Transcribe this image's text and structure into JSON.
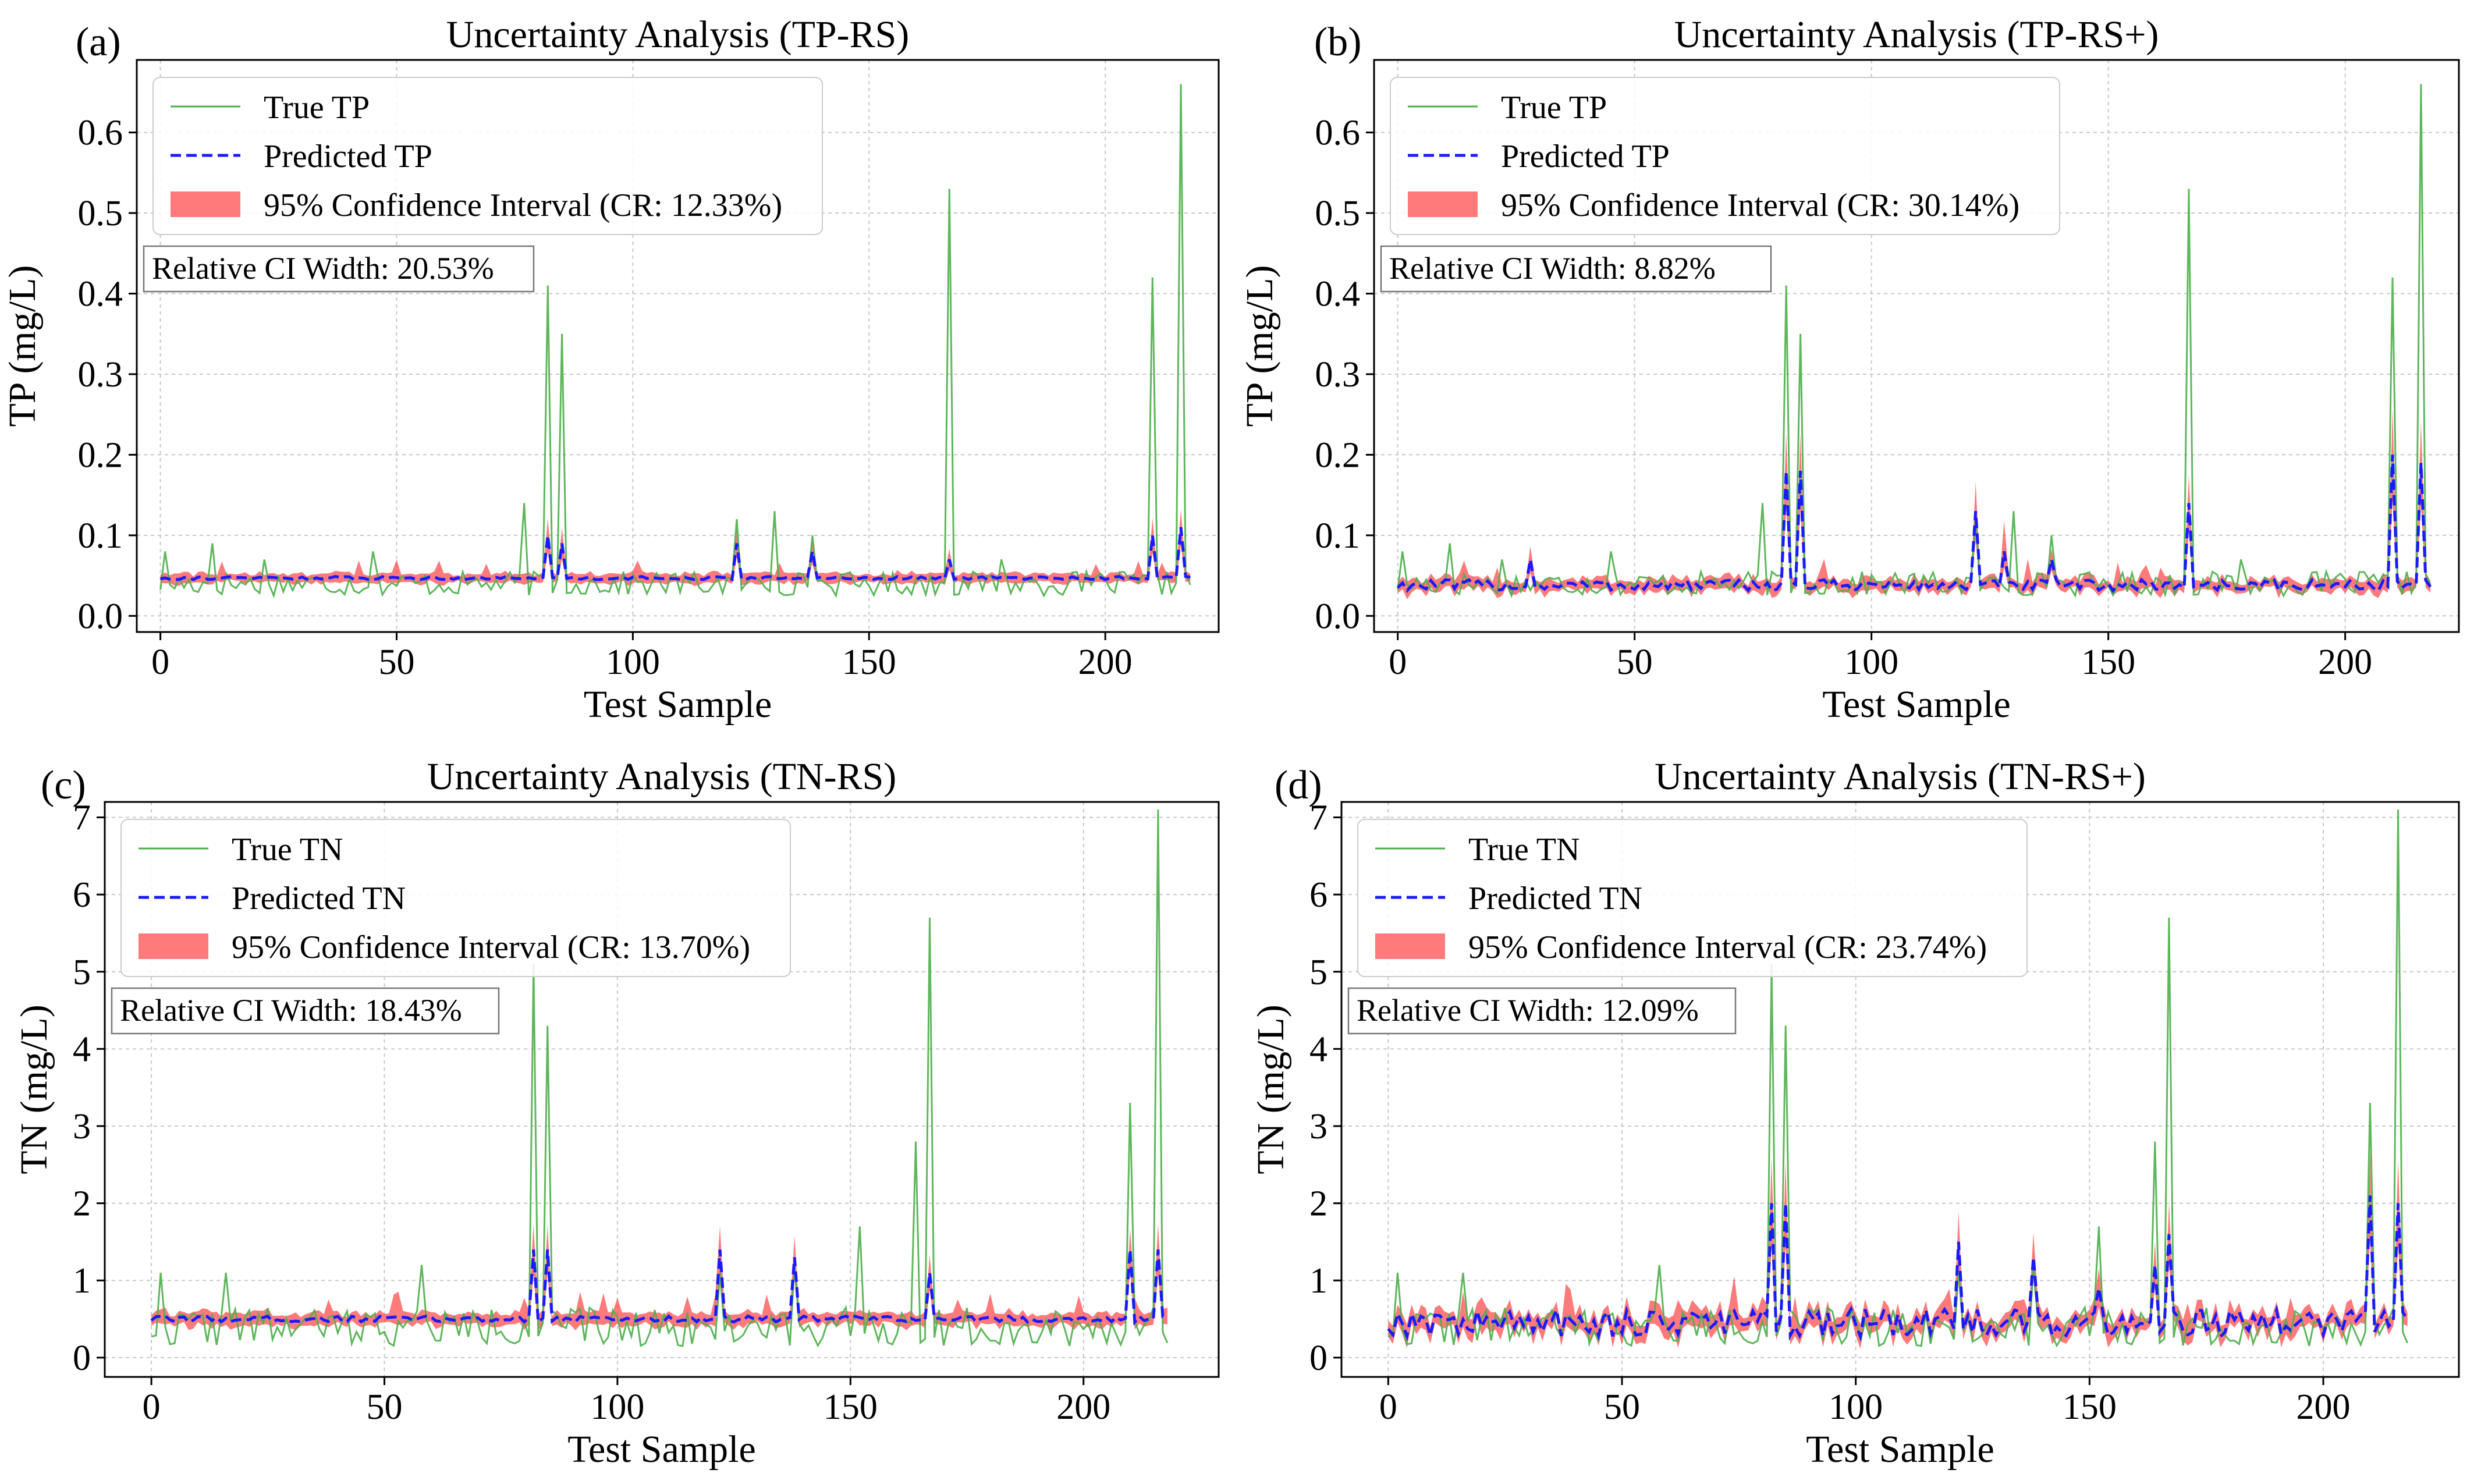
{
  "colors": {
    "true_line": "#4daf4a",
    "predicted_line": "#1a1aff",
    "ci_fill": "#ff3333",
    "grid": "#c8c8c8"
  },
  "chart_data": [
    {
      "type": "line",
      "panel_label": "(a)",
      "title": "Uncertainty Analysis (TP-RS)",
      "xlabel": "Test Sample",
      "ylabel": "TP (mg/L)",
      "xlim": [
        -5,
        224
      ],
      "ylim": [
        -0.02,
        0.69
      ],
      "xticks": [
        0,
        50,
        100,
        150,
        200
      ],
      "yticks": [
        0.0,
        0.1,
        0.2,
        0.3,
        0.4,
        0.5,
        0.6
      ],
      "ytick_labels": [
        "0.0",
        "0.1",
        "0.2",
        "0.3",
        "0.4",
        "0.5",
        "0.6"
      ],
      "legend": [
        "True TP",
        "Predicted TP",
        "95% Confidence Interval (CR: 12.33%)"
      ],
      "annotation": "Relative CI Width: 20.53%",
      "n_samples": 219,
      "true_series": {
        "base": 0.04,
        "noise": 0.015,
        "spikes": [
          [
            1,
            0.08
          ],
          [
            11,
            0.09
          ],
          [
            22,
            0.07
          ],
          [
            45,
            0.08
          ],
          [
            77,
            0.14
          ],
          [
            82,
            0.41
          ],
          [
            85,
            0.35
          ],
          [
            122,
            0.12
          ],
          [
            130,
            0.13
          ],
          [
            138,
            0.1
          ],
          [
            167,
            0.53
          ],
          [
            178,
            0.07
          ],
          [
            210,
            0.42
          ],
          [
            216,
            0.66
          ]
        ]
      },
      "predicted_series": {
        "base": 0.047,
        "noise": 0.002,
        "spikes": [
          [
            82,
            0.1
          ],
          [
            85,
            0.09
          ],
          [
            122,
            0.09
          ],
          [
            138,
            0.08
          ],
          [
            167,
            0.07
          ],
          [
            210,
            0.1
          ],
          [
            216,
            0.11
          ]
        ]
      },
      "ci_half_width": {
        "base": 0.005,
        "spike_extra": 0.3
      }
    },
    {
      "type": "line",
      "panel_label": "(b)",
      "title": "Uncertainty Analysis (TP-RS+)",
      "xlabel": "Test Sample",
      "ylabel": "TP (mg/L)",
      "xlim": [
        -5,
        224
      ],
      "ylim": [
        -0.02,
        0.69
      ],
      "xticks": [
        0,
        50,
        100,
        150,
        200
      ],
      "yticks": [
        0.0,
        0.1,
        0.2,
        0.3,
        0.4,
        0.5,
        0.6
      ],
      "ytick_labels": [
        "0.0",
        "0.1",
        "0.2",
        "0.3",
        "0.4",
        "0.5",
        "0.6"
      ],
      "legend": [
        "True TP",
        "Predicted TP",
        "95% Confidence Interval (CR: 30.14%)"
      ],
      "annotation": "Relative CI Width: 8.82%",
      "n_samples": 219,
      "true_series": {
        "base": 0.04,
        "noise": 0.015,
        "spikes": [
          [
            1,
            0.08
          ],
          [
            11,
            0.09
          ],
          [
            22,
            0.07
          ],
          [
            45,
            0.08
          ],
          [
            77,
            0.14
          ],
          [
            82,
            0.41
          ],
          [
            85,
            0.35
          ],
          [
            122,
            0.12
          ],
          [
            130,
            0.13
          ],
          [
            138,
            0.1
          ],
          [
            167,
            0.53
          ],
          [
            178,
            0.07
          ],
          [
            210,
            0.42
          ],
          [
            216,
            0.66
          ]
        ]
      },
      "predicted_series": {
        "base": 0.038,
        "noise": 0.007,
        "spikes": [
          [
            28,
            0.07
          ],
          [
            82,
            0.18
          ],
          [
            85,
            0.18
          ],
          [
            122,
            0.13
          ],
          [
            128,
            0.08
          ],
          [
            138,
            0.07
          ],
          [
            167,
            0.14
          ],
          [
            210,
            0.2
          ],
          [
            216,
            0.19
          ]
        ]
      },
      "ci_half_width": {
        "base": 0.006,
        "spike_extra": 0.3
      }
    },
    {
      "type": "line",
      "panel_label": "(c)",
      "title": "Uncertainty Analysis (TN-RS)",
      "xlabel": "Test Sample",
      "ylabel": "TN (mg/L)",
      "xlim": [
        -10,
        229
      ],
      "ylim": [
        -0.25,
        7.2
      ],
      "xticks": [
        0,
        50,
        100,
        150,
        200
      ],
      "yticks": [
        0,
        1,
        2,
        3,
        4,
        5,
        6,
        7
      ],
      "ytick_labels": [
        "0",
        "1",
        "2",
        "3",
        "4",
        "5",
        "6",
        "7"
      ],
      "legend": [
        "True TN",
        "Predicted TN",
        "95% Confidence Interval (CR: 13.70%)"
      ],
      "annotation": "Relative CI Width: 18.43%",
      "n_samples": 219,
      "true_series": {
        "base": 0.4,
        "noise": 0.25,
        "spikes": [
          [
            2,
            1.1
          ],
          [
            16,
            1.1
          ],
          [
            58,
            1.2
          ],
          [
            82,
            5.1
          ],
          [
            85,
            4.3
          ],
          [
            122,
            1.1
          ],
          [
            138,
            1.2
          ],
          [
            152,
            1.7
          ],
          [
            164,
            2.8
          ],
          [
            167,
            5.7
          ],
          [
            210,
            3.3
          ],
          [
            216,
            7.1
          ]
        ]
      },
      "predicted_series": {
        "base": 0.5,
        "noise": 0.04,
        "spikes": [
          [
            82,
            1.4
          ],
          [
            85,
            1.4
          ],
          [
            122,
            1.4
          ],
          [
            138,
            1.3
          ],
          [
            167,
            1.1
          ],
          [
            210,
            1.4
          ],
          [
            216,
            1.4
          ]
        ]
      },
      "ci_half_width": {
        "base": 0.07,
        "spike_extra": 0.25
      }
    },
    {
      "type": "line",
      "panel_label": "(d)",
      "title": "Uncertainty Analysis (TN-RS+)",
      "xlabel": "Test Sample",
      "ylabel": "TN (mg/L)",
      "xlim": [
        -10,
        229
      ],
      "ylim": [
        -0.25,
        7.2
      ],
      "xticks": [
        0,
        50,
        100,
        150,
        200
      ],
      "yticks": [
        0,
        1,
        2,
        3,
        4,
        5,
        6,
        7
      ],
      "ytick_labels": [
        "0",
        "1",
        "2",
        "3",
        "4",
        "5",
        "6",
        "7"
      ],
      "legend": [
        "True TN",
        "Predicted TN",
        "95% Confidence Interval (CR: 23.74%)"
      ],
      "annotation": "Relative CI Width: 12.09%",
      "n_samples": 219,
      "true_series": {
        "base": 0.4,
        "noise": 0.25,
        "spikes": [
          [
            2,
            1.1
          ],
          [
            16,
            1.1
          ],
          [
            58,
            1.2
          ],
          [
            82,
            5.1
          ],
          [
            85,
            4.3
          ],
          [
            122,
            1.1
          ],
          [
            138,
            1.2
          ],
          [
            152,
            1.7
          ],
          [
            164,
            2.8
          ],
          [
            167,
            5.7
          ],
          [
            210,
            3.3
          ],
          [
            216,
            7.1
          ]
        ]
      },
      "predicted_series": {
        "base": 0.45,
        "noise": 0.18,
        "spikes": [
          [
            82,
            2.0
          ],
          [
            85,
            2.0
          ],
          [
            122,
            1.5
          ],
          [
            138,
            1.3
          ],
          [
            152,
            0.9
          ],
          [
            164,
            1.2
          ],
          [
            167,
            1.6
          ],
          [
            210,
            2.1
          ],
          [
            216,
            2.0
          ]
        ]
      },
      "ci_half_width": {
        "base": 0.09,
        "spike_extra": 0.3
      }
    }
  ]
}
